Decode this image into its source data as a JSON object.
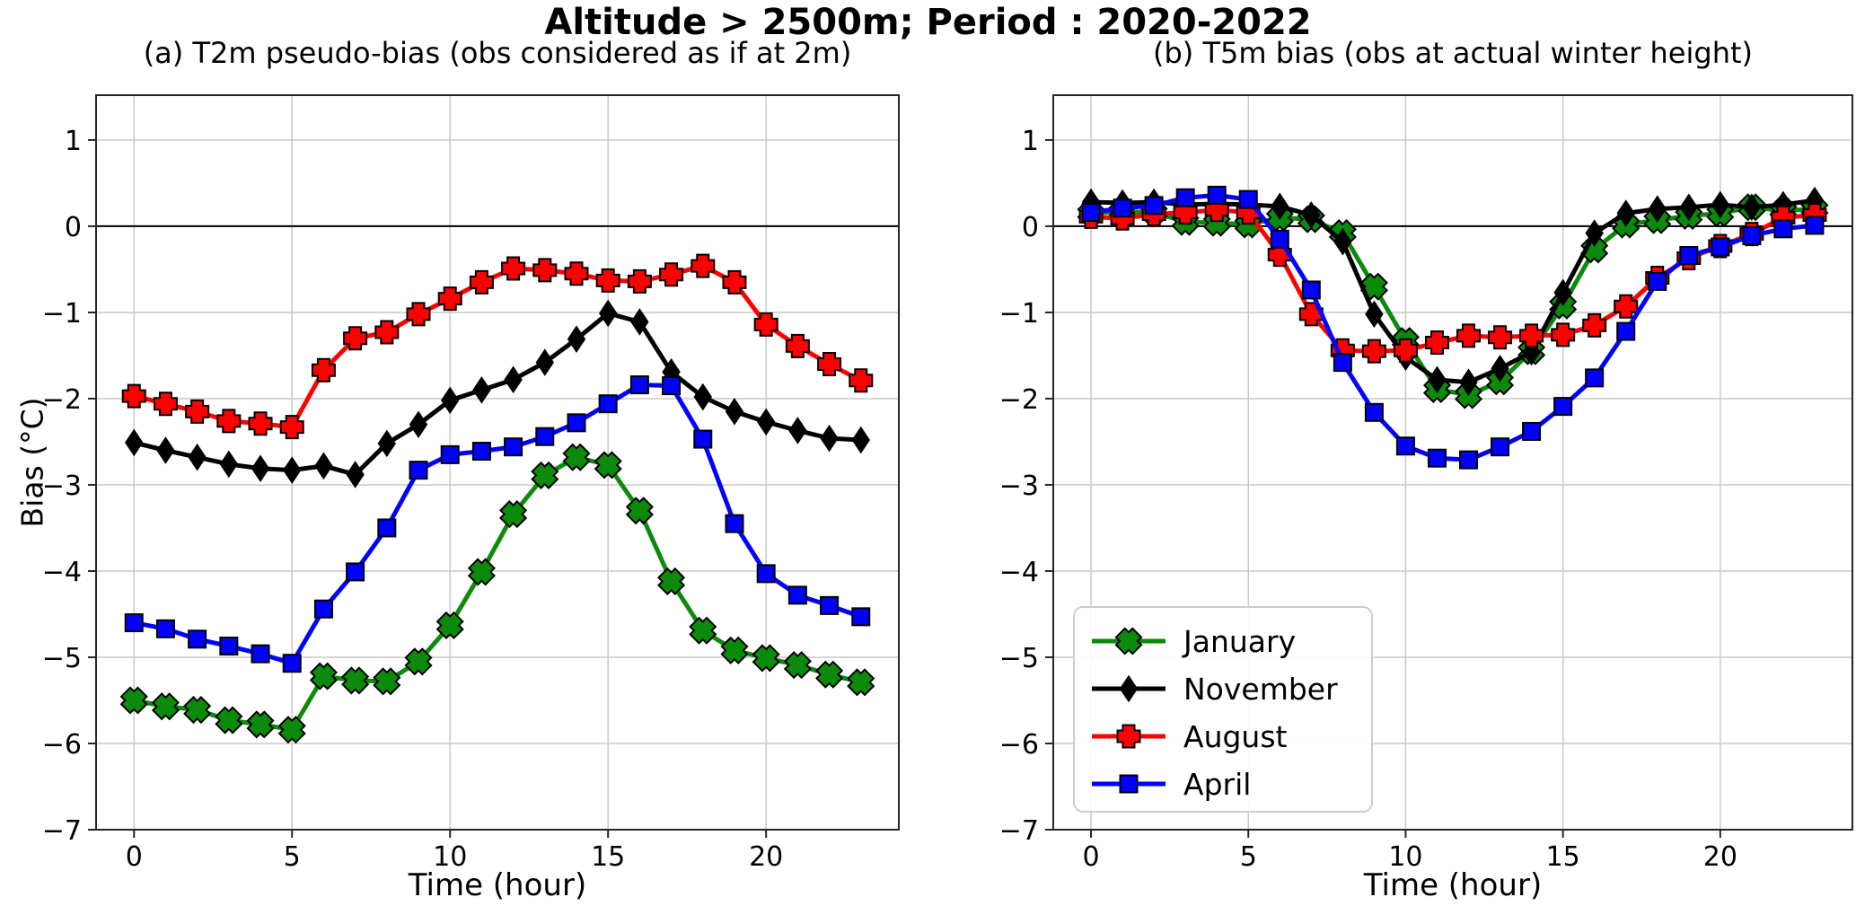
{
  "figure": {
    "main_title": "Altitude > 2500m; Period : 2020-2022",
    "ylabel": "Bias (°C)",
    "xlabel": "Time (hour)"
  },
  "chart_data": [
    {
      "panel": "a",
      "type": "line",
      "title": "(a) T2m pseudo-bias (obs considered as if at 2m)",
      "xlabel": "Time (hour)",
      "ylabel": "Bias (°C)",
      "x": [
        0,
        1,
        2,
        3,
        4,
        5,
        6,
        7,
        8,
        9,
        10,
        11,
        12,
        13,
        14,
        15,
        16,
        17,
        18,
        19,
        20,
        21,
        22,
        23
      ],
      "xlim": [
        -1.2,
        24.2
      ],
      "ylim": [
        -7,
        1.52
      ],
      "xticks": [
        0,
        5,
        10,
        15,
        20
      ],
      "yticks": [
        1,
        0,
        -1,
        -2,
        -3,
        -4,
        -5,
        -6,
        -7
      ],
      "grid": true,
      "zero_line_y": 0,
      "legend": false,
      "series": [
        {
          "name": "January",
          "color": "#0b8a0b",
          "marker": "x",
          "values": [
            -5.5,
            -5.57,
            -5.61,
            -5.73,
            -5.78,
            -5.84,
            -5.22,
            -5.27,
            -5.28,
            -5.05,
            -4.63,
            -4.01,
            -3.34,
            -2.89,
            -2.68,
            -2.77,
            -3.3,
            -4.12,
            -4.69,
            -4.92,
            -5.01,
            -5.09,
            -5.2,
            -5.29
          ]
        },
        {
          "name": "November",
          "color": "#000000",
          "marker": "diamond",
          "values": [
            -2.51,
            -2.6,
            -2.68,
            -2.76,
            -2.81,
            -2.83,
            -2.78,
            -2.88,
            -2.52,
            -2.3,
            -2.02,
            -1.9,
            -1.78,
            -1.58,
            -1.31,
            -1.01,
            -1.11,
            -1.69,
            -1.98,
            -2.15,
            -2.27,
            -2.37,
            -2.46,
            -2.48
          ]
        },
        {
          "name": "August",
          "color": "#ff0000",
          "marker": "plus",
          "values": [
            -1.97,
            -2.06,
            -2.15,
            -2.26,
            -2.29,
            -2.33,
            -1.67,
            -1.3,
            -1.23,
            -1.02,
            -0.84,
            -0.65,
            -0.49,
            -0.51,
            -0.55,
            -0.63,
            -0.64,
            -0.56,
            -0.46,
            -0.65,
            -1.14,
            -1.39,
            -1.6,
            -1.79
          ]
        },
        {
          "name": "April",
          "color": "#0000ff",
          "marker": "square",
          "values": [
            -4.6,
            -4.67,
            -4.79,
            -4.87,
            -4.96,
            -5.07,
            -4.44,
            -4.01,
            -3.5,
            -2.83,
            -2.65,
            -2.61,
            -2.56,
            -2.44,
            -2.28,
            -2.06,
            -1.84,
            -1.85,
            -2.47,
            -3.45,
            -4.03,
            -4.28,
            -4.4,
            -4.53
          ]
        }
      ]
    },
    {
      "panel": "b",
      "type": "line",
      "title": "(b) T5m bias (obs at actual winter height)",
      "xlabel": "Time (hour)",
      "x": [
        0,
        1,
        2,
        3,
        4,
        5,
        6,
        7,
        8,
        9,
        10,
        11,
        12,
        13,
        14,
        15,
        16,
        17,
        18,
        19,
        20,
        21,
        22,
        23
      ],
      "xlim": [
        -1.2,
        24.2
      ],
      "ylim": [
        -7,
        1.52
      ],
      "xticks": [
        0,
        5,
        10,
        15,
        20
      ],
      "yticks": [
        1,
        0,
        -1,
        -2,
        -3,
        -4,
        -5,
        -6,
        -7
      ],
      "grid": true,
      "zero_line_y": 0,
      "legend": true,
      "legend_position": "lower-left",
      "series": [
        {
          "name": "January",
          "color": "#0b8a0b",
          "marker": "x",
          "values": [
            0.15,
            0.17,
            0.16,
            0.05,
            0.04,
            0.02,
            0.1,
            0.08,
            -0.08,
            -0.7,
            -1.33,
            -1.89,
            -1.96,
            -1.8,
            -1.45,
            -0.92,
            -0.27,
            0.02,
            0.07,
            0.12,
            0.15,
            0.22,
            0.18,
            0.2
          ]
        },
        {
          "name": "November",
          "color": "#000000",
          "marker": "diamond",
          "values": [
            0.28,
            0.27,
            0.28,
            0.25,
            0.26,
            0.25,
            0.23,
            0.13,
            -0.18,
            -1.02,
            -1.52,
            -1.78,
            -1.81,
            -1.65,
            -1.46,
            -0.77,
            -0.08,
            0.15,
            0.2,
            0.22,
            0.25,
            0.22,
            0.25,
            0.3
          ]
        },
        {
          "name": "August",
          "color": "#ff0000",
          "marker": "plus",
          "values": [
            0.11,
            0.09,
            0.14,
            0.16,
            0.19,
            0.16,
            -0.33,
            -1.02,
            -1.44,
            -1.45,
            -1.44,
            -1.35,
            -1.27,
            -1.29,
            -1.27,
            -1.26,
            -1.15,
            -0.93,
            -0.6,
            -0.37,
            -0.23,
            -0.09,
            0.1,
            0.13
          ]
        },
        {
          "name": "April",
          "color": "#0000ff",
          "marker": "square",
          "values": [
            0.16,
            0.21,
            0.24,
            0.33,
            0.36,
            0.31,
            -0.15,
            -0.74,
            -1.58,
            -2.16,
            -2.55,
            -2.69,
            -2.71,
            -2.56,
            -2.38,
            -2.09,
            -1.76,
            -1.22,
            -0.64,
            -0.34,
            -0.24,
            -0.11,
            -0.03,
            0.01
          ]
        }
      ]
    }
  ]
}
